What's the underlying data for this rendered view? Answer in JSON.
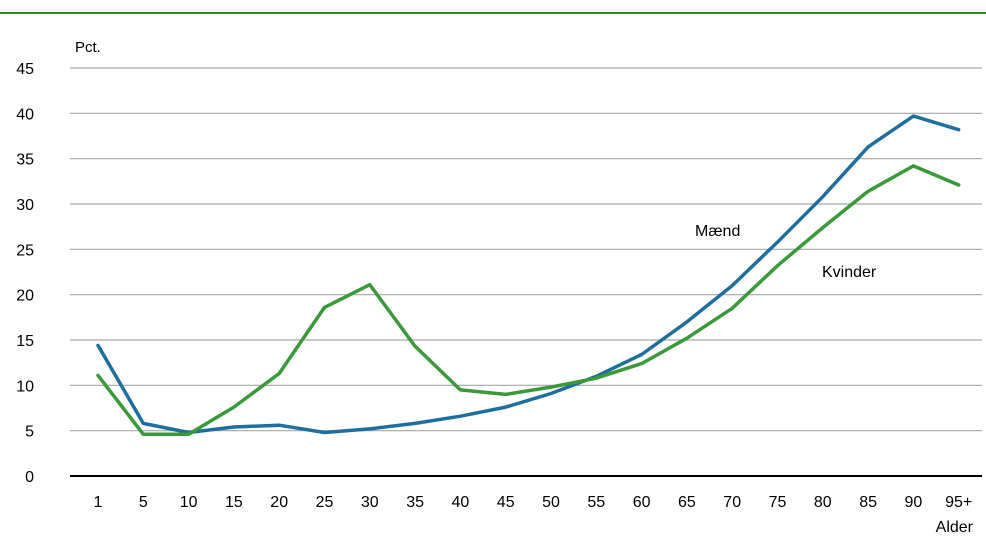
{
  "colors": {
    "top_rule": "#2e8b1e",
    "grid": "#a6a6a6",
    "axis": "#000000",
    "maend": "#1f6f9e",
    "kvinder": "#3a9a3a"
  },
  "chart_data": {
    "type": "line",
    "ylabel": "Pct.",
    "xlabel": "Alder",
    "ylim": [
      0,
      45
    ],
    "yticks": [
      "0",
      "5",
      "10",
      "15",
      "20",
      "25",
      "30",
      "35",
      "40",
      "45"
    ],
    "categories": [
      "1",
      "5",
      "10",
      "15",
      "20",
      "25",
      "30",
      "35",
      "40",
      "45",
      "50",
      "55",
      "60",
      "65",
      "70",
      "75",
      "80",
      "85",
      "90",
      "95+"
    ],
    "grid": true,
    "legend": "inline labels",
    "series": [
      {
        "name": "Mænd",
        "color": "#1f6f9e",
        "values": [
          14.4,
          5.8,
          4.8,
          5.4,
          5.6,
          4.8,
          5.2,
          5.8,
          6.6,
          7.6,
          9.1,
          11.0,
          13.4,
          17.0,
          21.0,
          25.8,
          30.8,
          36.3,
          39.7,
          38.2
        ]
      },
      {
        "name": "Kvinder",
        "color": "#3a9a3a",
        "values": [
          11.1,
          4.6,
          4.6,
          7.6,
          11.3,
          18.6,
          21.1,
          14.3,
          9.5,
          9.0,
          9.8,
          10.8,
          12.4,
          15.2,
          18.5,
          23.2,
          27.4,
          31.4,
          34.2,
          32.1
        ]
      }
    ]
  }
}
